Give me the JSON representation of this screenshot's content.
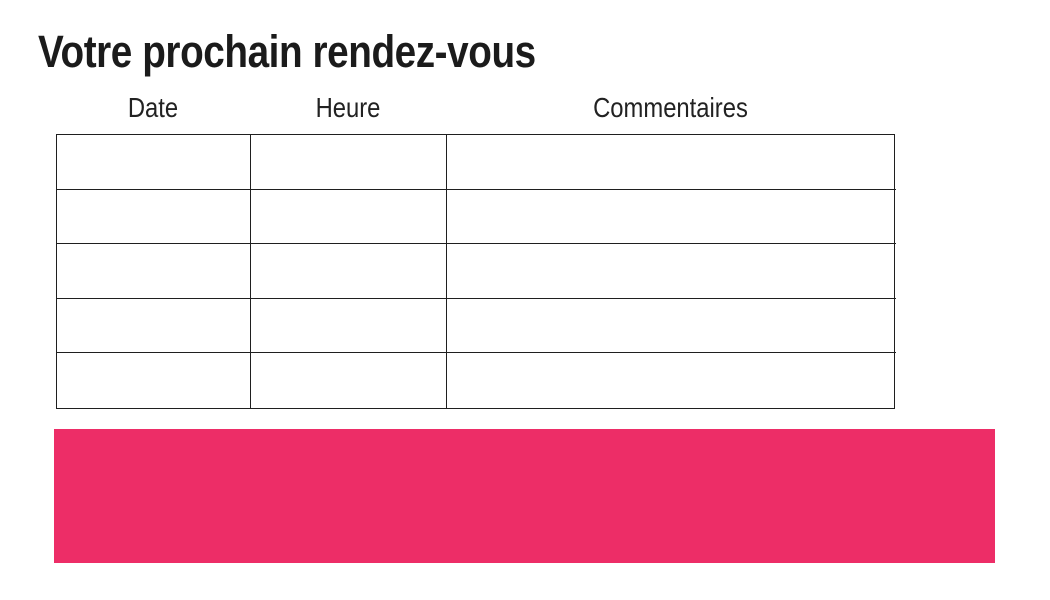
{
  "slide": {
    "title": "Votre prochain rendez-vous"
  },
  "table": {
    "headers": [
      {
        "label": "Date"
      },
      {
        "label": "Heure"
      },
      {
        "label": "Commentaires"
      }
    ],
    "row_count": 5,
    "column_count": 3,
    "cells": [
      [
        "",
        "",
        ""
      ],
      [
        "",
        "",
        ""
      ],
      [
        "",
        "",
        ""
      ],
      [
        "",
        "",
        ""
      ],
      [
        "",
        "",
        ""
      ]
    ]
  },
  "colors": {
    "accent": "#ED2D67",
    "text": "#1B1B1B",
    "table_border": "#1F1F1F",
    "background": "#FFFFFF"
  }
}
